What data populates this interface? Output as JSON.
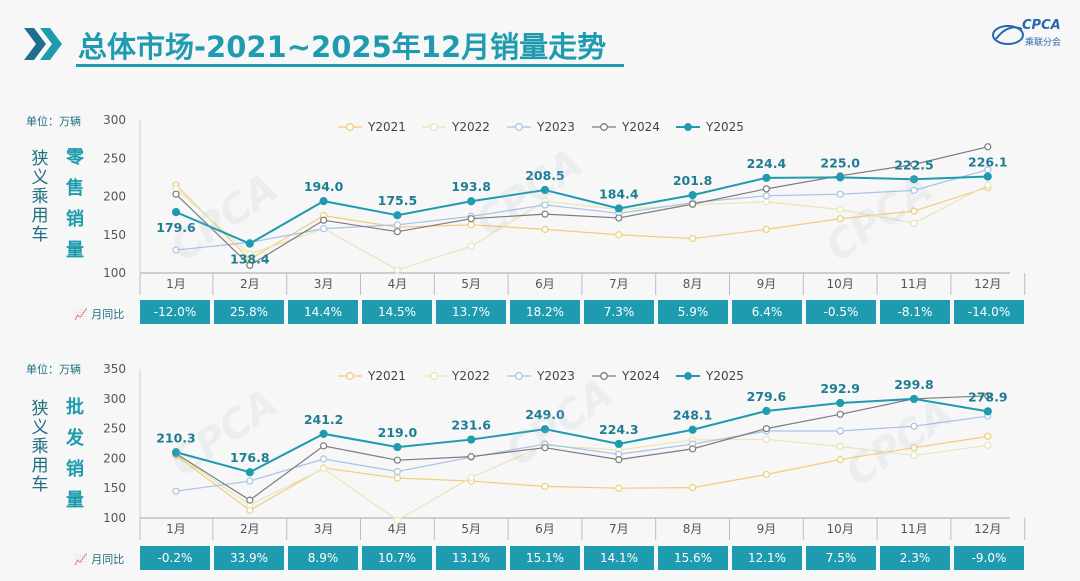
{
  "header": {
    "title": "总体市场-2021~2025年12月销量走势",
    "logo_text": "CPCA",
    "logo_sub": "乘联分会",
    "watermark": "CPCA 乘联分会"
  },
  "colors": {
    "accent": "#1f9bb0",
    "Y2021": "#f2cc7a",
    "Y2022": "#e6e7b8",
    "Y2023": "#a9c2e6",
    "Y2024": "#7c7c7c",
    "Y2025": "#1f9bb0"
  },
  "chart_data": [
    {
      "type": "line",
      "title": "零售销量",
      "side_label": "狭义乘用车",
      "metric_label": "零售销量",
      "unit_label": "单位：万辆",
      "ylim": [
        100,
        300
      ],
      "yticks": [
        "300",
        "250",
        "200",
        "150",
        "100"
      ],
      "categories": [
        "1月",
        "2月",
        "3月",
        "4月",
        "5月",
        "6月",
        "7月",
        "8月",
        "9月",
        "10月",
        "11月",
        "12月"
      ],
      "series": [
        {
          "name": "Y2021",
          "values": [
            215,
            118,
            175,
            160,
            163,
            157,
            150,
            145,
            157,
            171,
            181,
            212
          ]
        },
        {
          "name": "Y2022",
          "values": [
            210,
            125,
            158,
            104,
            135,
            194,
            183,
            189,
            193,
            183,
            165,
            215
          ]
        },
        {
          "name": "Y2023",
          "values": [
            130,
            140,
            158,
            163,
            174,
            189,
            178,
            192,
            201,
            203,
            208,
            235
          ]
        },
        {
          "name": "Y2024",
          "values": [
            203,
            110,
            169,
            154,
            171,
            177,
            172,
            190,
            210,
            227,
            242,
            265
          ]
        },
        {
          "name": "Y2025",
          "values": [
            179.6,
            138.4,
            194.0,
            175.5,
            193.8,
            208.5,
            184.4,
            201.8,
            224.4,
            225.0,
            222.5,
            226.1
          ]
        }
      ],
      "data_labels": [
        "179.6",
        "138.4",
        "194.0",
        "175.5",
        "193.8",
        "208.5",
        "184.4",
        "201.8",
        "224.4",
        "225.0",
        "222.5",
        "226.1"
      ],
      "mom_label": "月同比",
      "mom": [
        "-12.0%",
        "25.8%",
        "14.4%",
        "14.5%",
        "13.7%",
        "18.2%",
        "7.3%",
        "5.9%",
        "6.4%",
        "-0.5%",
        "-8.1%",
        "-14.0%"
      ],
      "legend_position": "top"
    },
    {
      "type": "line",
      "title": "批发销量",
      "side_label": "狭义乘用车",
      "metric_label": "批发销量",
      "unit_label": "单位：万辆",
      "ylim": [
        100,
        350
      ],
      "yticks": [
        "350",
        "300",
        "250",
        "200",
        "150",
        "100"
      ],
      "categories": [
        "1月",
        "2月",
        "3月",
        "4月",
        "5月",
        "6月",
        "7月",
        "8月",
        "9月",
        "10月",
        "11月",
        "12月"
      ],
      "series": [
        {
          "name": "Y2021",
          "values": [
            205,
            113,
            184,
            167,
            162,
            153,
            150,
            151,
            173,
            198,
            218,
            237
          ]
        },
        {
          "name": "Y2022",
          "values": [
            207,
            122,
            183,
            96,
            168,
            222,
            214,
            231,
            232,
            220,
            205,
            222
          ]
        },
        {
          "name": "Y2023",
          "values": [
            145,
            162,
            199,
            178,
            202,
            224,
            207,
            224,
            246,
            246,
            254,
            271
          ]
        },
        {
          "name": "Y2024",
          "values": [
            208,
            130,
            221,
            197,
            203,
            218,
            198,
            216,
            250,
            274,
            300,
            305
          ]
        },
        {
          "name": "Y2025",
          "values": [
            210.3,
            176.8,
            241.2,
            219.0,
            231.6,
            249.0,
            224.3,
            248.1,
            279.6,
            292.9,
            299.8,
            278.9
          ]
        }
      ],
      "data_labels": [
        "210.3",
        "176.8",
        "241.2",
        "219.0",
        "231.6",
        "249.0",
        "224.3",
        "248.1",
        "279.6",
        "292.9",
        "299.8",
        "278.9"
      ],
      "mom_label": "月同比",
      "mom": [
        "-0.2%",
        "33.9%",
        "8.9%",
        "10.7%",
        "13.1%",
        "15.1%",
        "14.1%",
        "15.6%",
        "12.1%",
        "7.5%",
        "2.3%",
        "-9.0%"
      ],
      "legend_position": "top"
    }
  ]
}
